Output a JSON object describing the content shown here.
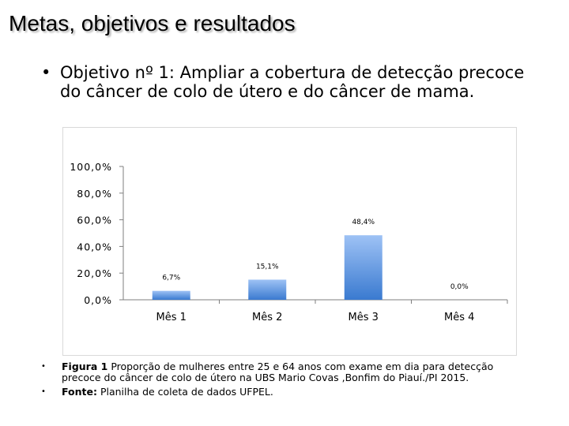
{
  "slide": {
    "title": "Metas, objetivos e resultados",
    "objective_bullet": "•",
    "objective_text": "Objetivo nº 1: Ampliar a cobertura de detecção precoce do câncer de colo de útero e do câncer de mama."
  },
  "chart_data": {
    "type": "bar",
    "categories": [
      "Mês 1",
      "Mês 2",
      "Mês 3",
      "Mês 4"
    ],
    "values": [
      6.7,
      15.1,
      48.4,
      0.0
    ],
    "data_labels": [
      "6,7%",
      "15,1%",
      "48,4%",
      "0,0%"
    ],
    "y_ticks": [
      0,
      20,
      40,
      60,
      80,
      100
    ],
    "y_tick_labels": [
      "0,0%",
      "20,0%",
      "40,0%",
      "60,0%",
      "80,0%",
      "100,0%"
    ],
    "ylim": [
      0,
      100
    ],
    "title": "",
    "xlabel": "",
    "ylabel": "",
    "grid": false,
    "colors": {
      "bar_top": "#9ec2f5",
      "bar_bottom": "#3a7ad0",
      "axis": "#7f7f7f"
    }
  },
  "notes": {
    "bullet": "•",
    "figure_label": "Figura 1",
    "figure_text": "Proporção de mulheres entre 25 e 64 anos com exame em dia para detecção precoce do câncer de colo de útero na UBS Mario Covas ,Bonfim do Piauí./PI 2015.",
    "source_label": "Fonte:",
    "source_text": "Planilha de coleta de dados UFPEL."
  }
}
